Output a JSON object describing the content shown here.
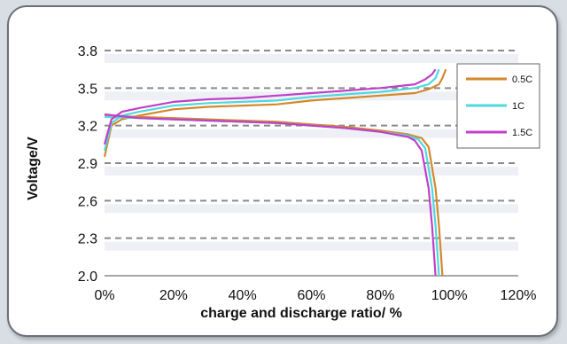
{
  "chart_data": {
    "type": "line",
    "xlabel": "charge and discharge ratio/ %",
    "ylabel": "Voltage/V",
    "xlim": [
      0,
      120
    ],
    "ylim": [
      2.0,
      3.8
    ],
    "x_ticks": [
      "0%",
      "20%",
      "40%",
      "60%",
      "80%",
      "100%",
      "120%"
    ],
    "y_ticks": [
      "2.0",
      "2.3",
      "2.6",
      "2.9",
      "3.2",
      "3.5",
      "3.8"
    ],
    "grid": "horizontal dashed",
    "legend_position": "right",
    "series": [
      {
        "name": "0.5C",
        "color": "#d4882c",
        "charge": [
          [
            0,
            2.95
          ],
          [
            2,
            3.2
          ],
          [
            5,
            3.25
          ],
          [
            10,
            3.28
          ],
          [
            20,
            3.33
          ],
          [
            30,
            3.35
          ],
          [
            40,
            3.36
          ],
          [
            50,
            3.37
          ],
          [
            60,
            3.4
          ],
          [
            70,
            3.42
          ],
          [
            80,
            3.44
          ],
          [
            90,
            3.46
          ],
          [
            94,
            3.49
          ],
          [
            97,
            3.53
          ],
          [
            98,
            3.58
          ],
          [
            99,
            3.65
          ]
        ],
        "discharge": [
          [
            0,
            3.28
          ],
          [
            10,
            3.27
          ],
          [
            20,
            3.26
          ],
          [
            30,
            3.25
          ],
          [
            40,
            3.24
          ],
          [
            50,
            3.23
          ],
          [
            60,
            3.21
          ],
          [
            70,
            3.19
          ],
          [
            80,
            3.16
          ],
          [
            88,
            3.13
          ],
          [
            92,
            3.1
          ],
          [
            94,
            3.03
          ],
          [
            96,
            2.7
          ],
          [
            97,
            2.4
          ],
          [
            98,
            2.0
          ]
        ]
      },
      {
        "name": "1C",
        "color": "#4fd8de",
        "charge": [
          [
            0,
            3.0
          ],
          [
            2,
            3.22
          ],
          [
            5,
            3.28
          ],
          [
            10,
            3.31
          ],
          [
            20,
            3.36
          ],
          [
            30,
            3.38
          ],
          [
            40,
            3.39
          ],
          [
            50,
            3.4
          ],
          [
            60,
            3.43
          ],
          [
            70,
            3.45
          ],
          [
            80,
            3.47
          ],
          [
            90,
            3.5
          ],
          [
            94,
            3.53
          ],
          [
            96,
            3.58
          ],
          [
            97,
            3.65
          ]
        ],
        "discharge": [
          [
            0,
            3.27
          ],
          [
            10,
            3.26
          ],
          [
            20,
            3.25
          ],
          [
            30,
            3.24
          ],
          [
            40,
            3.23
          ],
          [
            50,
            3.22
          ],
          [
            60,
            3.2
          ],
          [
            70,
            3.18
          ],
          [
            80,
            3.15
          ],
          [
            88,
            3.12
          ],
          [
            91,
            3.09
          ],
          [
            93,
            3.02
          ],
          [
            95,
            2.7
          ],
          [
            96,
            2.4
          ],
          [
            97,
            2.0
          ]
        ]
      },
      {
        "name": "1.5C",
        "color": "#c040c8",
        "charge": [
          [
            0,
            3.05
          ],
          [
            2,
            3.25
          ],
          [
            5,
            3.31
          ],
          [
            10,
            3.34
          ],
          [
            20,
            3.39
          ],
          [
            30,
            3.41
          ],
          [
            40,
            3.42
          ],
          [
            50,
            3.44
          ],
          [
            60,
            3.46
          ],
          [
            70,
            3.48
          ],
          [
            80,
            3.5
          ],
          [
            90,
            3.53
          ],
          [
            93,
            3.57
          ],
          [
            95,
            3.61
          ],
          [
            96,
            3.65
          ]
        ],
        "discharge": [
          [
            0,
            3.29
          ],
          [
            10,
            3.26
          ],
          [
            20,
            3.25
          ],
          [
            30,
            3.24
          ],
          [
            40,
            3.23
          ],
          [
            50,
            3.22
          ],
          [
            60,
            3.2
          ],
          [
            70,
            3.18
          ],
          [
            80,
            3.15
          ],
          [
            88,
            3.11
          ],
          [
            90,
            3.08
          ],
          [
            92,
            3.0
          ],
          [
            94,
            2.7
          ],
          [
            95,
            2.4
          ],
          [
            96,
            2.0
          ]
        ]
      }
    ]
  }
}
